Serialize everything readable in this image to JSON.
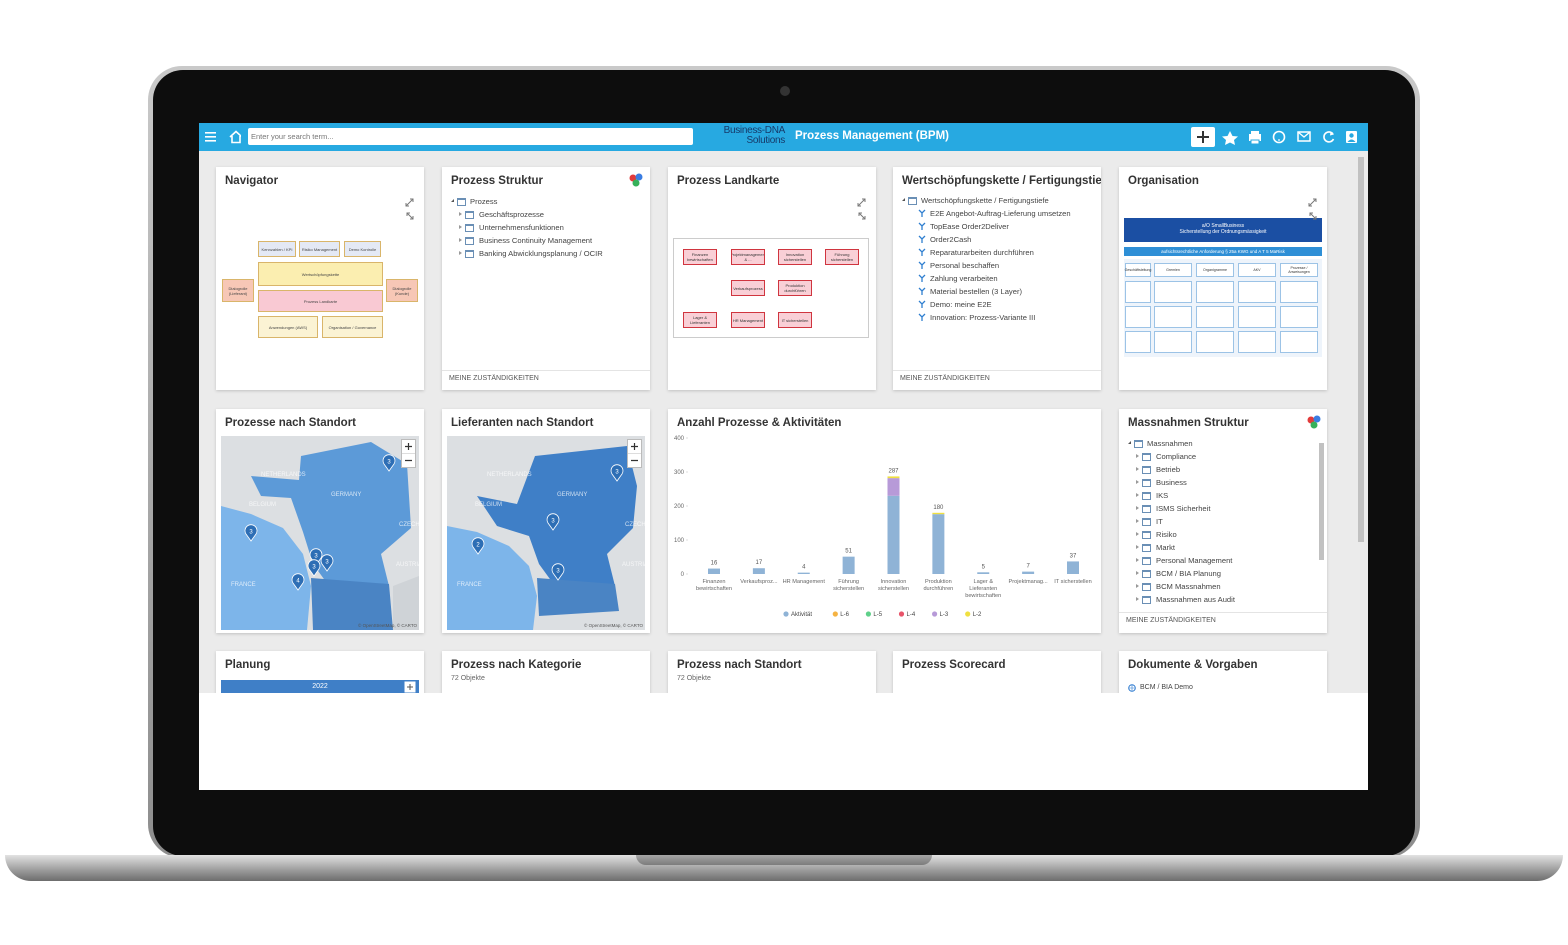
{
  "header": {
    "search_placeholder": "Enter your search term...",
    "logo_line1": "Business-DNA",
    "logo_line2": "Solutions",
    "title": "Prozess Management (BPM)"
  },
  "cards": {
    "navigator": {
      "title": "Navigator",
      "boxes": [
        "Kennzahlen / KPI",
        "Risiko Management",
        "Demo Kontrolle",
        "Wertschöpfungskette",
        "Prozess Landkarte",
        "Anwendungen (AWS)",
        "Organisation / Governance",
        "Dialogrolle (Lieferant)",
        "Dialogrolle (Kunde)"
      ]
    },
    "prozess_struktur": {
      "title": "Prozess Struktur",
      "tree": {
        "root": "Prozess",
        "items": [
          "Geschäftsprozesse",
          "Unternehmensfunktionen",
          "Business Continuity Management",
          "Banking Abwicklungsplanung / OCIR"
        ]
      },
      "footer": "MEINE ZUSTÄNDIGKEITEN"
    },
    "landkarte": {
      "title": "Prozess Landkarte",
      "boxes": [
        "Finanzen bewirtschaften",
        "Projektmanagement & ...",
        "Innovation sicherstellen",
        "Führung sicherstellen",
        "Verkaufsprozess",
        "Produktion durchführen",
        "Lager & Lieferanten",
        "HR Management",
        "IT sicherstellen"
      ]
    },
    "wertschoepfung": {
      "title": "Wertschöpfungskette / Fertigungstief...",
      "tree": {
        "root": "Wertschöpfungskette / Fertigungstiefe",
        "items": [
          "E2E Angebot-Auftrag-Lieferung umsetzen",
          "TopEase Order2Deliver",
          "Order2Cash",
          "Reparaturarbeiten durchführen",
          "Personal beschaffen",
          "Zahlung verarbeiten",
          "Material bestellen (3 Layer)",
          "Demo: meine E2E",
          "Innovation: Prozess-Variante III"
        ]
      },
      "footer": "MEINE ZUSTÄNDIGKEITEN"
    },
    "organisation": {
      "title": "Organisation",
      "banner": "a/O SmallBusiness",
      "banner_sub": "Sicherstellung der Ordnungsmässigkeit",
      "requirement": "aufsichtsrechtliche Anforderung § 25a KWG und A T 5 MaRisk",
      "columns": [
        "Geschäftsleitung",
        "Gremien",
        "Organigramme",
        "AKV",
        "Prozesse / Anweisungen"
      ]
    },
    "prozesse_standort": {
      "title": "Prozesse nach Standort",
      "countries": [
        "NETHERLANDS",
        "GERMANY",
        "BELGIUM",
        "FRANCE",
        "CZECH",
        "AUSTRIA"
      ],
      "markers": [
        3,
        3,
        3,
        3,
        3,
        4
      ],
      "attribution": "© OpenStreetMap, © CARTO"
    },
    "lieferanten_standort": {
      "title": "Lieferanten nach Standort",
      "countries": [
        "NETHERLANDS",
        "GERMANY",
        "BELGIUM",
        "FRANCE",
        "CZECH",
        "AUSTRIA"
      ],
      "markers": [
        3,
        3,
        2,
        3
      ],
      "attribution": "© OpenStreetMap, © CARTO"
    },
    "massnahmen": {
      "title": "Massnahmen Struktur",
      "tree": {
        "root": "Massnahmen",
        "items": [
          "Compliance",
          "Betrieb",
          "Business",
          "IKS",
          "ISMS Sicherheit",
          "IT",
          "Risiko",
          "Markt",
          "Personal Management",
          "BCM / BIA Planung",
          "BCM Massnahmen",
          "Massnahmen aus Audit"
        ]
      },
      "footer": "MEINE ZUSTÄNDIGKEITEN"
    },
    "planung": {
      "title": "Planung",
      "year": "2022"
    },
    "kategorie": {
      "title": "Prozess nach Kategorie",
      "count": "72 Objekte"
    },
    "standort": {
      "title": "Prozess nach Standort",
      "count": "72 Objekte"
    },
    "scorecard": {
      "title": "Prozess Scorecard"
    },
    "dokumente": {
      "title": "Dokumente & Vorgaben",
      "item": "BCM / BIA Demo"
    }
  },
  "chart_data": {
    "type": "bar",
    "stacked": true,
    "title": "Anzahl Prozesse & Aktivitäten",
    "categories": [
      "Finanzen bewirtschaften",
      "Verkaufsproz...",
      "HR Management",
      "Führung sicherstellen",
      "Innovation sicherstellen",
      "Produktion durchführen",
      "Lager & Lieferanten bewirtschaften",
      "Projektmanag...",
      "IT sicherstellen"
    ],
    "series": [
      {
        "name": "Aktivität",
        "color": "#8fb3d6",
        "values": [
          16,
          17,
          4,
          51,
          230,
          176,
          5,
          7,
          37
        ]
      },
      {
        "name": "L-6",
        "color": "#f5b342",
        "values": [
          0,
          0,
          0,
          0,
          0,
          0,
          0,
          0,
          0
        ]
      },
      {
        "name": "L-5",
        "color": "#5fd08a",
        "values": [
          0,
          0,
          0,
          0,
          0,
          0,
          0,
          0,
          0
        ]
      },
      {
        "name": "L-4",
        "color": "#e8546a",
        "values": [
          0,
          0,
          0,
          0,
          0,
          0,
          0,
          0,
          0
        ]
      },
      {
        "name": "L-3",
        "color": "#b79ad8",
        "values": [
          0,
          0,
          0,
          0,
          52,
          0,
          0,
          0,
          0
        ]
      },
      {
        "name": "L-2",
        "color": "#f0e040",
        "values": [
          0,
          0,
          0,
          0,
          5,
          4,
          0,
          0,
          0
        ]
      }
    ],
    "totals": [
      16,
      17,
      4,
      51,
      287,
      180,
      5,
      7,
      37
    ],
    "ylim": [
      0,
      400
    ],
    "yticks": [
      0,
      100,
      200,
      300,
      400
    ],
    "legend": "bottom"
  }
}
